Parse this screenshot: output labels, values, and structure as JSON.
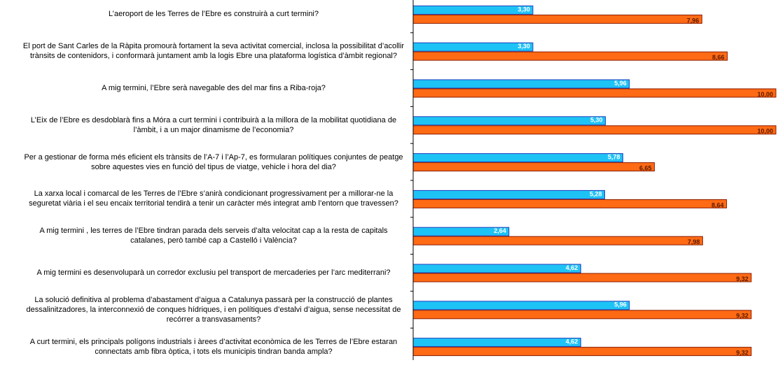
{
  "chart_data": {
    "type": "bar",
    "orientation": "horizontal",
    "categories": [
      "L’aeroport de les Terres de l’Ebre es construirà a curt termini?",
      "El port de Sant Carles de la Ràpita promourà fortament la seva activitat comercial, inclosa la possibilitat d’acollir trànsits de contenidors, i conformarà juntament amb la logis Ebre una plataforma logística d’àmbit regional?",
      "A mig termini, l’Ebre serà navegable des del mar fins a Riba-roja?",
      "L’Eix de l’Ebre es desdoblarà fins a Móra a curt termini i contribuirà a la millora de la mobilitat quotidiana de l’àmbit, i a un major dinamisme de l’economia?",
      "Per a gestionar de forma més eficient els trànsits de l’A-7 i l’Ap-7, es formularan polítiques conjuntes de peatge sobre aquestes vies en funció del tipus de viatge, vehicle i hora del dia?",
      "La xarxa local i comarcal de les Terres de l’Ebre s’anirà condicionant progressivament per a millorar-ne la seguretat viària i el seu encaix territorial tendirà a tenir un caràcter més integrat amb l’entorn que travessen?",
      "A mig termini , les terres de l’Ebre tindran parada dels serveis d’alta velocitat cap a la resta de capitals catalanes, però també cap a Castelló i València?",
      "A mig termini es desenvoluparà un corredor exclusiu pel transport de mercaderies per l’arc mediterrani?",
      "La solució definitiva al problema d’abastament d’aigua a Catalunya passarà per la construcció de plantes dessalinitzadores, la interconnexió de conques hídriques, i en polítiques d’estalvi d’aigua, sense necessitat de recórrer a transvasaments?",
      "A curt termini, els principals polígons industrials i àrees d’activitat econòmica de les Terres de l’Ebre estaran connectats amb fibra òptica, i tots els municipis tindran banda ampla?"
    ],
    "series": [
      {
        "color": "#1ec3f6",
        "border": "#1e3fbe",
        "label_color": "#ffffff",
        "values": [
          3.3,
          3.3,
          5.96,
          5.3,
          5.78,
          5.28,
          2.64,
          4.62,
          5.96,
          4.62
        ],
        "value_labels": [
          "3,30",
          "3,30",
          "5,96",
          "5,30",
          "5,78",
          "5,28",
          "2,64",
          "4,62",
          "5,96",
          "4,62"
        ]
      },
      {
        "color": "#ff6a14",
        "border": "#8a1c00",
        "label_color": "#5a1a00",
        "values": [
          7.96,
          8.66,
          10.0,
          10.0,
          6.65,
          8.64,
          7.98,
          9.32,
          9.32,
          9.32
        ],
        "value_labels": [
          "7,96",
          "8,66",
          "10,00",
          "10,00",
          "6,65",
          "8,64",
          "7,98",
          "9,32",
          "9,32",
          "9,32"
        ]
      }
    ],
    "xlim": [
      0,
      10
    ]
  }
}
